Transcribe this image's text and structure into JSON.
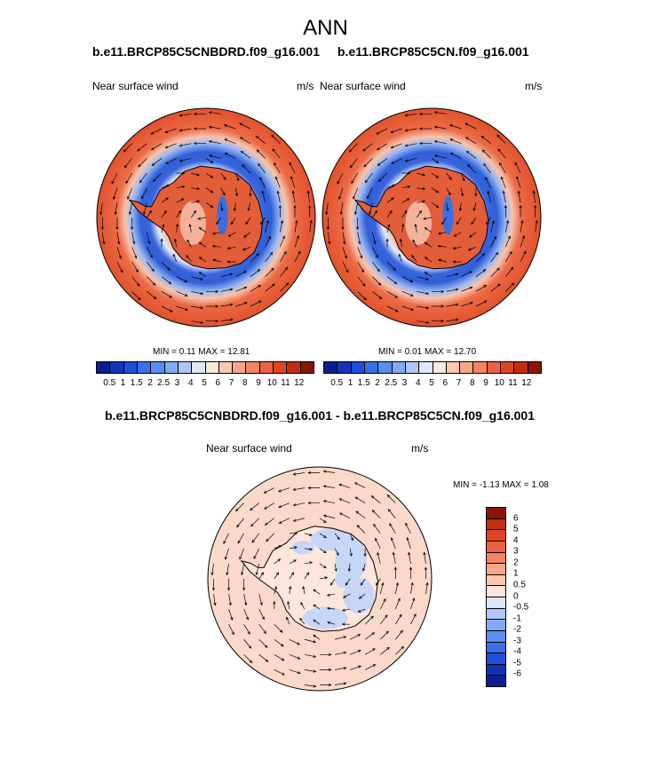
{
  "title": "ANN",
  "panels": {
    "left": {
      "run_title": "b.e11.BRCP85C5CNBDRD.f09_g16.001",
      "variable": "Near surface wind",
      "units": "m/s",
      "stats": "MIN =  0.11 MAX =  12.81"
    },
    "right": {
      "run_title": "b.e11.BRCP85C5CN.f09_g16.001",
      "variable": "Near surface wind",
      "units": "m/s",
      "stats": "MIN =  0.01 MAX =  12.70"
    },
    "diff": {
      "run_title": "b.e11.BRCP85C5CNBDRD.f09_g16.001 - b.e11.BRCP85C5CN.f09_g16.001",
      "variable": "Near surface wind",
      "units": "m/s",
      "stats": "MIN =  -1.13 MAX =   1.08"
    }
  },
  "colorbar_speed": {
    "labels": [
      "0.5",
      "1",
      "1.5",
      "2",
      "2.5",
      "3",
      "4",
      "5",
      "6",
      "7",
      "8",
      "9",
      "10",
      "11",
      "12"
    ],
    "colors": [
      "#0a1f8f",
      "#1533b8",
      "#1f4fd6",
      "#3a6fe8",
      "#5b8cf0",
      "#84a9f4",
      "#afc6f7",
      "#dde6fb",
      "#fde6dc",
      "#fbc9b2",
      "#f7a787",
      "#f38563",
      "#ec6240",
      "#dc4422",
      "#c02f12",
      "#8a1505"
    ]
  },
  "colorbar_diff": {
    "labels": [
      "6",
      "5",
      "4",
      "3",
      "2",
      "1",
      "0.5",
      "0",
      "-0.5",
      "-1",
      "-2",
      "-3",
      "-4",
      "-5",
      "-6"
    ],
    "colors": [
      "#8a1505",
      "#c02f12",
      "#dc4422",
      "#ec6240",
      "#f38563",
      "#f7a787",
      "#fbc9b2",
      "#fde6dc",
      "#dde6fb",
      "#afc6f7",
      "#84a9f4",
      "#5b8cf0",
      "#3a6fe8",
      "#1f4fd6",
      "#1533b8",
      "#0a1f8f"
    ]
  }
}
